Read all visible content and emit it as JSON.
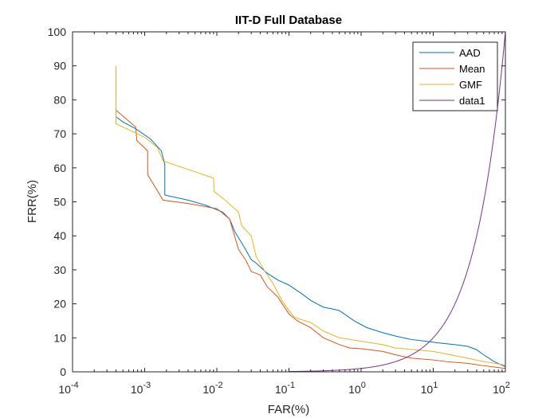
{
  "chart_data": {
    "type": "line",
    "title": "IIT-D Full Database",
    "xlabel": "FAR(%)",
    "ylabel": "FRR(%)",
    "xscale": "log",
    "xlim": [
      0.0001,
      100
    ],
    "ylim": [
      0,
      100
    ],
    "grid": false,
    "legend_position": "top-right",
    "x_ticks": [
      {
        "value": 0.0001,
        "base": "10",
        "exp": "-4"
      },
      {
        "value": 0.001,
        "base": "10",
        "exp": "-3"
      },
      {
        "value": 0.01,
        "base": "10",
        "exp": "-2"
      },
      {
        "value": 0.1,
        "base": "10",
        "exp": "-1"
      },
      {
        "value": 1,
        "base": "10",
        "exp": "0"
      },
      {
        "value": 10,
        "base": "10",
        "exp": "1"
      },
      {
        "value": 100,
        "base": "10",
        "exp": "2"
      }
    ],
    "y_ticks": [
      0,
      10,
      20,
      30,
      40,
      50,
      60,
      70,
      80,
      90,
      100
    ],
    "series": [
      {
        "name": "AAD",
        "color": "#0072BD",
        "points": [
          [
            0.0004,
            75
          ],
          [
            0.0005,
            73.5
          ],
          [
            0.00075,
            71.5
          ],
          [
            0.0012,
            68.5
          ],
          [
            0.0017,
            65
          ],
          [
            0.0019,
            61
          ],
          [
            0.0019,
            52
          ],
          [
            0.004,
            50.5
          ],
          [
            0.007,
            49
          ],
          [
            0.012,
            47
          ],
          [
            0.015,
            45
          ],
          [
            0.018,
            41
          ],
          [
            0.022,
            38
          ],
          [
            0.025,
            36
          ],
          [
            0.03,
            33
          ],
          [
            0.035,
            32
          ],
          [
            0.05,
            29
          ],
          [
            0.07,
            27
          ],
          [
            0.1,
            25.5
          ],
          [
            0.15,
            23
          ],
          [
            0.2,
            21
          ],
          [
            0.3,
            19
          ],
          [
            0.4,
            18.5
          ],
          [
            0.5,
            18
          ],
          [
            0.8,
            15
          ],
          [
            1.2,
            13
          ],
          [
            2,
            11.5
          ],
          [
            3,
            10.5
          ],
          [
            5,
            9.5
          ],
          [
            8,
            9
          ],
          [
            12,
            8.5
          ],
          [
            20,
            8
          ],
          [
            30,
            7.5
          ],
          [
            40,
            6.5
          ],
          [
            50,
            5
          ],
          [
            70,
            3
          ],
          [
            100,
            1.5
          ]
        ]
      },
      {
        "name": "Mean",
        "color": "#D95319",
        "points": [
          [
            0.0004,
            77
          ],
          [
            0.00075,
            72
          ],
          [
            0.00078,
            68
          ],
          [
            0.0011,
            65
          ],
          [
            0.0011,
            58
          ],
          [
            0.0018,
            50.5
          ],
          [
            0.004,
            49.5
          ],
          [
            0.01,
            48
          ],
          [
            0.015,
            45
          ],
          [
            0.02,
            36
          ],
          [
            0.025,
            33
          ],
          [
            0.03,
            29.5
          ],
          [
            0.04,
            28.5
          ],
          [
            0.05,
            25
          ],
          [
            0.07,
            22
          ],
          [
            0.1,
            17
          ],
          [
            0.13,
            15
          ],
          [
            0.2,
            13
          ],
          [
            0.3,
            10
          ],
          [
            0.5,
            8
          ],
          [
            0.7,
            7
          ],
          [
            1,
            6.8
          ],
          [
            2,
            6
          ],
          [
            3,
            5
          ],
          [
            5,
            4
          ],
          [
            10,
            3.5
          ],
          [
            15,
            3
          ],
          [
            30,
            2.5
          ],
          [
            50,
            1.8
          ],
          [
            100,
            1
          ]
        ]
      },
      {
        "name": "GMF",
        "color": "#EDB120",
        "points": [
          [
            0.0004,
            90
          ],
          [
            0.0004,
            73
          ],
          [
            0.001,
            69
          ],
          [
            0.0015,
            66
          ],
          [
            0.0018,
            62
          ],
          [
            0.009,
            57
          ],
          [
            0.0092,
            53
          ],
          [
            0.013,
            50.5
          ],
          [
            0.02,
            47
          ],
          [
            0.022,
            43
          ],
          [
            0.03,
            40
          ],
          [
            0.035,
            34
          ],
          [
            0.045,
            30
          ],
          [
            0.06,
            26
          ],
          [
            0.08,
            21
          ],
          [
            0.1,
            18
          ],
          [
            0.12,
            16
          ],
          [
            0.2,
            14.5
          ],
          [
            0.3,
            12
          ],
          [
            0.5,
            10
          ],
          [
            1,
            9
          ],
          [
            2,
            8
          ],
          [
            3,
            7
          ],
          [
            10,
            6
          ],
          [
            30,
            4
          ],
          [
            50,
            3
          ],
          [
            100,
            2
          ]
        ]
      },
      {
        "name": "data1",
        "color": "#7E2F8E",
        "function": "y = x",
        "x_start": 0.1,
        "x_end": 100
      }
    ]
  }
}
